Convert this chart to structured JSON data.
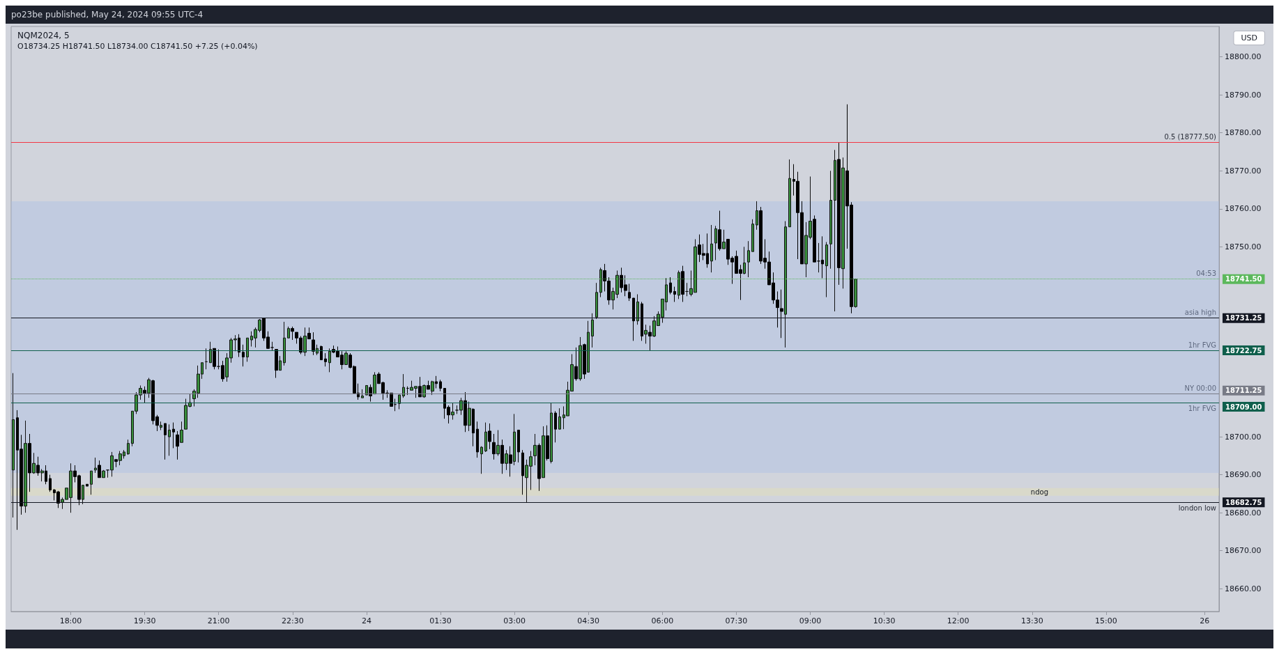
{
  "chart_data": {
    "type": "candlestick",
    "title": "NQM2024, 5",
    "subtitle": "O18734.25 H18741.50 L18734.00 C18741.50 +7.25 (+0.04%)",
    "annotations": [
      "po23be published, May 24, 2024 09:55 UTC-4",
      "USD",
      {
        "text": "0.5 (18777.50)",
        "y": 18777.5
      },
      {
        "text": "04:53",
        "y": 18741.5
      },
      {
        "text": "asia high",
        "y": 18731.25
      },
      {
        "text": "1hr FVG",
        "y": 18722.75
      },
      {
        "text": "NY 00:00",
        "y": 18711.25
      },
      {
        "text": "1hr FVG",
        "y": 18709
      },
      {
        "text": "london low",
        "y": 18682.75
      }
    ],
    "categories": [
      null,
      null,
      null,
      null,
      null,
      null,
      null,
      null,
      null,
      null,
      null,
      null,
      null,
      null,
      "18:00",
      null,
      null,
      null,
      null,
      null,
      null,
      null,
      null,
      null,
      null,
      null,
      null,
      null,
      null,
      null,
      null,
      null,
      "19:30",
      null,
      null,
      null,
      null,
      null,
      null,
      null,
      null,
      null,
      null,
      null,
      null,
      null,
      null,
      null,
      null,
      null,
      "21:00",
      null,
      null,
      null,
      null,
      null,
      null,
      null,
      null,
      null,
      null,
      null,
      null,
      null,
      null,
      null,
      null,
      null,
      "22:30",
      null,
      null,
      null,
      null,
      null,
      null,
      null,
      null,
      null,
      null,
      null,
      null,
      null,
      null,
      null,
      null,
      null,
      "24",
      null,
      null,
      null,
      null,
      null,
      null,
      null,
      null,
      null,
      null,
      null,
      null,
      null,
      null,
      null,
      null,
      null,
      "01:30",
      null,
      null,
      null,
      null,
      null,
      null,
      null,
      null,
      null,
      null,
      null,
      null,
      null,
      null,
      null,
      null,
      null,
      "03:00",
      null,
      null,
      null,
      null,
      null,
      null,
      null,
      null,
      null,
      null,
      null,
      null,
      null,
      null,
      null,
      null,
      null,
      "04:30",
      null,
      null,
      null,
      null,
      null,
      null,
      null,
      null,
      null,
      null,
      null,
      null,
      null,
      null,
      null,
      null,
      null,
      "06:00",
      null,
      null,
      null,
      null,
      null,
      null,
      null,
      null,
      null,
      null,
      null,
      null,
      null,
      null,
      null,
      null,
      null,
      "07:30",
      null,
      null,
      null,
      null,
      null,
      null,
      null,
      null,
      null,
      null,
      null,
      null,
      null,
      null,
      null,
      null,
      null,
      "09:00",
      null,
      null,
      null,
      null,
      null,
      null,
      null,
      null,
      null,
      null,
      null,
      null,
      null,
      null,
      null,
      null,
      null,
      "10:30",
      null,
      null,
      null,
      null,
      null,
      null,
      null,
      null,
      null,
      null,
      null,
      null,
      null,
      null,
      null,
      null,
      null,
      "12:00",
      null,
      null,
      null,
      null,
      null,
      null,
      null,
      null,
      null,
      null,
      null,
      null,
      null,
      null,
      null,
      null,
      null,
      "13:30",
      null,
      null,
      null,
      null,
      null,
      null,
      null,
      null,
      null,
      null,
      null,
      null,
      null,
      null,
      null,
      null,
      null,
      "15:00",
      null,
      null,
      null,
      null,
      null,
      null,
      null,
      null,
      null,
      null,
      null,
      null,
      null,
      null,
      null,
      null,
      null,
      null,
      null,
      null,
      null,
      null,
      null,
      "26",
      null,
      null,
      null
    ],
    "ohlc": [
      [
        18691.25,
        18716.75,
        18678.75,
        18704.5
      ],
      [
        18705,
        18707,
        18675.5,
        18696.5
      ],
      [
        18696.75,
        18700.5,
        18679.5,
        18681.75
      ],
      [
        18681.75,
        18704.25,
        18680,
        18698.25
      ],
      [
        18698.25,
        18700.75,
        18685.5,
        18690.5
      ],
      [
        18690.5,
        18695.75,
        18690.25,
        18693
      ],
      [
        18692.5,
        18694.75,
        18689.75,
        18690.5
      ],
      [
        18690.5,
        18691.5,
        18688.25,
        18691
      ],
      [
        18691,
        18692.5,
        18687.5,
        18688.25
      ],
      [
        18689,
        18690,
        18685.5,
        18686
      ],
      [
        18686,
        18686.25,
        18683.25,
        18685.25
      ],
      [
        18685.5,
        18685.75,
        18681.25,
        18682.5
      ],
      [
        18682.75,
        18684,
        18681,
        18683.5
      ],
      [
        18683.5,
        18686.5,
        18683.5,
        18686.5
      ],
      [
        18684,
        18693,
        18680,
        18691
      ],
      [
        18691,
        18692.5,
        18688,
        18689.5
      ],
      [
        18689.75,
        18690,
        18682,
        18683.5
      ],
      [
        18683.5,
        18687.25,
        18682.25,
        18687.25
      ],
      [
        18687.5,
        18687.5,
        18687,
        18687
      ],
      [
        18687.5,
        18691,
        18684.75,
        18691
      ],
      [
        18691.25,
        18694.5,
        18690.5,
        18691.75
      ],
      [
        18692.5,
        18693.75,
        18689.25,
        18689.25
      ],
      [
        18689.25,
        18691.25,
        18689.25,
        18691
      ],
      [
        18691.25,
        18691.25,
        18689.25,
        18691.25
      ],
      [
        18691.25,
        18696,
        18689.5,
        18695
      ],
      [
        18694,
        18694,
        18692,
        18693.5
      ],
      [
        18693.75,
        18696.25,
        18692.5,
        18695.5
      ],
      [
        18695,
        18696.5,
        18694.25,
        18696
      ],
      [
        18695.5,
        18699.25,
        18695.25,
        18698.25
      ],
      [
        18698.25,
        18706.75,
        18697.5,
        18706.75
      ],
      [
        18706.75,
        18711.75,
        18706,
        18711
      ],
      [
        18711,
        18713.5,
        18709.75,
        18712.75
      ],
      [
        18712.25,
        18713.25,
        18709,
        18711.5
      ],
      [
        18711.5,
        18715.5,
        18710.25,
        18715
      ],
      [
        18714.75,
        18715,
        18703.25,
        18704.25
      ],
      [
        18705.25,
        18705.75,
        18701.5,
        18703
      ],
      [
        18702.5,
        18704,
        18701.75,
        18703
      ],
      [
        18703.5,
        18703.5,
        18694,
        18700.5
      ],
      [
        18700,
        18703.25,
        18695,
        18701.75
      ],
      [
        18702,
        18703.75,
        18697,
        18701.25
      ],
      [
        18700.5,
        18701.5,
        18694,
        18697.5
      ],
      [
        18698.5,
        18704,
        18698.5,
        18701.75
      ],
      [
        18702,
        18710,
        18702,
        18708.25
      ],
      [
        18708,
        18711.25,
        18707.75,
        18709
      ],
      [
        18710,
        18712.5,
        18708,
        18712
      ],
      [
        18711.5,
        18718.75,
        18710.25,
        18716.5
      ],
      [
        18716.5,
        18719.5,
        18715.25,
        18719.5
      ],
      [
        18719.75,
        18723.25,
        18717.75,
        18719.75
      ],
      [
        18719.5,
        18725,
        18719.5,
        18723
      ],
      [
        18723.25,
        18723.25,
        18717.75,
        18718.5
      ],
      [
        18718.5,
        18723,
        18717.75,
        18718.5
      ],
      [
        18718.75,
        18720,
        18714.5,
        18715.25
      ],
      [
        18715.75,
        18722,
        18714.5,
        18720.75
      ],
      [
        18720.75,
        18726,
        18719.5,
        18725.5
      ],
      [
        18725.5,
        18726.75,
        18722.5,
        18725.75
      ],
      [
        18726,
        18727,
        18721,
        18722.25
      ],
      [
        18722.25,
        18724.25,
        18718.5,
        18721
      ],
      [
        18721,
        18726,
        18719.75,
        18726
      ],
      [
        18725.5,
        18727.75,
        18723.75,
        18726.5
      ],
      [
        18726,
        18728.75,
        18723.5,
        18728.25
      ],
      [
        18728,
        18731,
        18727.5,
        18730.75
      ],
      [
        18731.25,
        18731.25,
        18725.25,
        18726
      ],
      [
        18726.25,
        18727.75,
        18723.25,
        18723.25
      ],
      [
        18723.5,
        18725,
        18722.75,
        18723.5
      ],
      [
        18723,
        18723,
        18715.5,
        18717.5
      ],
      [
        18717.5,
        18721.25,
        18717.5,
        18720
      ],
      [
        18719.5,
        18730.25,
        18718.75,
        18726
      ],
      [
        18726,
        18729,
        18726,
        18728.5
      ],
      [
        18728.5,
        18729,
        18725.5,
        18727.75
      ],
      [
        18727.5,
        18727.5,
        18724.5,
        18726
      ],
      [
        18726,
        18726.5,
        18721.75,
        18722.25
      ],
      [
        18722.25,
        18728.75,
        18721.25,
        18726.5
      ],
      [
        18727.25,
        18728.75,
        18725.75,
        18725.75
      ],
      [
        18725.5,
        18727.5,
        18721.5,
        18722.5
      ],
      [
        18722,
        18724.25,
        18721.5,
        18723.25
      ],
      [
        18723.75,
        18724,
        18720.25,
        18720.25
      ],
      [
        18720.5,
        18722,
        18718.5,
        18719.75
      ],
      [
        18719.5,
        18723.25,
        18717,
        18722.5
      ],
      [
        18723,
        18724,
        18722,
        18722.25
      ],
      [
        18722.5,
        18723.75,
        18721,
        18721
      ],
      [
        18721.5,
        18722.5,
        18717.75,
        18719
      ],
      [
        18719,
        18722.5,
        18719,
        18722
      ],
      [
        18721.5,
        18722,
        18718,
        18718.25
      ],
      [
        18718.5,
        18718.75,
        18711.25,
        18711.5
      ],
      [
        18711.5,
        18714,
        18709.75,
        18710.5
      ],
      [
        18710.25,
        18712.5,
        18710.25,
        18710.75
      ],
      [
        18711,
        18713.5,
        18711,
        18713.5
      ],
      [
        18713,
        18713.75,
        18709.25,
        18710.75
      ],
      [
        18711.25,
        18717,
        18711.25,
        18716.25
      ],
      [
        18716.5,
        18717,
        18714,
        18714
      ],
      [
        18714.25,
        18714.5,
        18709.75,
        18711.5
      ],
      [
        18711.5,
        18712.25,
        18710.25,
        18711.5
      ],
      [
        18711.5,
        18711.5,
        18708,
        18708
      ],
      [
        18708.5,
        18710,
        18706.75,
        18708.5
      ],
      [
        18708.75,
        18711,
        18707.25,
        18711
      ],
      [
        18710.75,
        18716.5,
        18710.25,
        18713
      ],
      [
        18712.75,
        18713.25,
        18711,
        18712.75
      ],
      [
        18712.25,
        18714.75,
        18712.25,
        18713
      ],
      [
        18712.75,
        18713.25,
        18710.25,
        18713.25
      ],
      [
        18713.25,
        18715.75,
        18710.5,
        18710.5
      ],
      [
        18710.5,
        18713.75,
        18710.25,
        18713.5
      ],
      [
        18713.5,
        18714.75,
        18712.5,
        18712.5
      ],
      [
        18712,
        18714.75,
        18711,
        18714.5
      ],
      [
        18714.5,
        18716,
        18712.75,
        18714
      ],
      [
        18714.5,
        18715,
        18712,
        18712.75
      ],
      [
        18712.75,
        18712.75,
        18704.75,
        18707.5
      ],
      [
        18707.75,
        18708.25,
        18703.5,
        18705.75
      ],
      [
        18705.75,
        18709,
        18704.5,
        18706.5
      ],
      [
        18707,
        18708.25,
        18706,
        18707
      ],
      [
        18707,
        18710.25,
        18705.75,
        18709.5
      ],
      [
        18709.5,
        18711.75,
        18701.25,
        18703
      ],
      [
        18703,
        18709.25,
        18701.5,
        18707.5
      ],
      [
        18707.25,
        18707.5,
        18697.5,
        18701
      ],
      [
        18702,
        18704,
        18694.5,
        18696
      ],
      [
        18695.5,
        18697.5,
        18690.25,
        18697.25
      ],
      [
        18696.25,
        18703.75,
        18696,
        18701.25
      ],
      [
        18701.5,
        18703.5,
        18696.75,
        18698.75
      ],
      [
        18698.5,
        18700.75,
        18694,
        18695.5
      ],
      [
        18695.5,
        18701.75,
        18695,
        18697.75
      ],
      [
        18697.75,
        18699.25,
        18690.25,
        18693
      ],
      [
        18693,
        18696.5,
        18691.25,
        18695.5
      ],
      [
        18695.25,
        18697.5,
        18689.5,
        18693
      ],
      [
        18693.5,
        18706,
        18692.5,
        18701.25
      ],
      [
        18701.75,
        18701.75,
        18693.25,
        18696
      ],
      [
        18695.75,
        18696.5,
        18684.75,
        18689.75
      ],
      [
        18689.25,
        18694,
        18682.75,
        18692.5
      ],
      [
        18692.25,
        18696.25,
        18686,
        18694.75
      ],
      [
        18695,
        18700.75,
        18692.5,
        18697.75
      ],
      [
        18697.75,
        18698.25,
        18685.75,
        18689
      ],
      [
        18689.25,
        18702.75,
        18689.25,
        18700.25
      ],
      [
        18700.25,
        18703,
        18693.75,
        18694.25
      ],
      [
        18693.5,
        18709,
        18693,
        18706.25
      ],
      [
        18706.25,
        18706.75,
        18698.5,
        18702
      ],
      [
        18702,
        18707.5,
        18702,
        18705.25
      ],
      [
        18705,
        18708,
        18702,
        18705.75
      ],
      [
        18705.5,
        18714.5,
        18705.5,
        18712.25
      ],
      [
        18712,
        18721.75,
        18712,
        18719
      ],
      [
        18718.5,
        18723.5,
        18714.75,
        18715.25
      ],
      [
        18715.25,
        18726.25,
        18714.75,
        18724
      ],
      [
        18724.25,
        18724.5,
        18715.25,
        18716.5
      ],
      [
        18717,
        18730.5,
        18717,
        18727.5
      ],
      [
        18726.5,
        18732.5,
        18723.5,
        18730.75
      ],
      [
        18731.5,
        18740.5,
        18731,
        18738
      ],
      [
        18738,
        18744.5,
        18736.75,
        18744
      ],
      [
        18743.75,
        18745.5,
        18738.25,
        18741
      ],
      [
        18741,
        18742,
        18734.75,
        18736
      ],
      [
        18736,
        18739.25,
        18733.5,
        18738.25
      ],
      [
        18737.5,
        18743.75,
        18736.5,
        18742.5
      ],
      [
        18742.5,
        18744.5,
        18738,
        18739.25
      ],
      [
        18740,
        18742.5,
        18737,
        18738.5
      ],
      [
        18738,
        18740.25,
        18735.75,
        18736.5
      ],
      [
        18736.5,
        18736.5,
        18725.25,
        18730.5
      ],
      [
        18730.5,
        18737.5,
        18729.5,
        18735.5
      ],
      [
        18735,
        18735.5,
        18725.25,
        18726.5
      ],
      [
        18727,
        18729.5,
        18724.5,
        18728
      ],
      [
        18727.5,
        18729.25,
        18722.75,
        18726.5
      ],
      [
        18726.5,
        18731.75,
        18726.25,
        18730.5
      ],
      [
        18729.25,
        18733,
        18729.25,
        18732.25
      ],
      [
        18731.5,
        18736.25,
        18730,
        18736.25
      ],
      [
        18735.5,
        18741.75,
        18733.25,
        18740
      ],
      [
        18740.5,
        18742,
        18737.5,
        18738
      ],
      [
        18738.25,
        18739.5,
        18735.5,
        18737.5
      ],
      [
        18737.25,
        18743.75,
        18736.25,
        18743.25
      ],
      [
        18743.5,
        18745,
        18735.5,
        18737.5
      ],
      [
        18738.25,
        18740.5,
        18737,
        18738.25
      ],
      [
        18737.5,
        18743.75,
        18737,
        18739
      ],
      [
        18738,
        18752,
        18738,
        18750
      ],
      [
        18750.5,
        18753.25,
        18746,
        18748
      ],
      [
        18748.25,
        18750.75,
        18746.5,
        18747.75
      ],
      [
        18748.25,
        18753.5,
        18744.5,
        18745.5
      ],
      [
        18746.25,
        18755.75,
        18743.25,
        18750.75
      ],
      [
        18751,
        18755.5,
        18746.5,
        18754.75
      ],
      [
        18754.5,
        18759.5,
        18749,
        18749.5
      ],
      [
        18749.5,
        18754.5,
        18749.5,
        18751.25
      ],
      [
        18752,
        18752,
        18745.25,
        18746.75
      ],
      [
        18747,
        18747.5,
        18740.25,
        18746
      ],
      [
        18747.5,
        18749,
        18743,
        18743
      ],
      [
        18744,
        18745.25,
        18736,
        18743
      ],
      [
        18743,
        18750,
        18742.75,
        18745.75
      ],
      [
        18746,
        18751.5,
        18742,
        18749
      ],
      [
        18748.75,
        18757.25,
        18748.75,
        18756
      ],
      [
        18755.75,
        18762,
        18754.5,
        18759.5
      ],
      [
        18759.5,
        18760.5,
        18745.5,
        18746.25
      ],
      [
        18747,
        18752,
        18744.25,
        18746
      ],
      [
        18746,
        18748.75,
        18740,
        18740
      ],
      [
        18740.5,
        18743.25,
        18735,
        18736
      ],
      [
        18736,
        18738.25,
        18728.75,
        18734
      ],
      [
        18733.75,
        18738.75,
        18726,
        18733
      ],
      [
        18732.25,
        18756.75,
        18723.5,
        18755.25
      ],
      [
        18755.25,
        18773,
        18755.25,
        18768
      ],
      [
        18767.75,
        18771.75,
        18763.5,
        18767.25
      ],
      [
        18767.25,
        18769.75,
        18746.75,
        18759
      ],
      [
        18759,
        18762,
        18745.5,
        18745.5
      ],
      [
        18745.5,
        18756.5,
        18742,
        18753
      ],
      [
        18752.5,
        18768.5,
        18752,
        18756.75
      ],
      [
        18757.25,
        18758.25,
        18746,
        18746
      ],
      [
        18746.25,
        18751,
        18743.25,
        18746.25
      ],
      [
        18746.5,
        18752.75,
        18741.75,
        18745.5
      ],
      [
        18745,
        18751.25,
        18736.75,
        18750.5
      ],
      [
        18750.75,
        18770,
        18744.25,
        18762.25
      ],
      [
        18762.25,
        18775.5,
        18733,
        18772.75
      ],
      [
        18773,
        18777.5,
        18740,
        18744.5
      ],
      [
        18744.25,
        18773.5,
        18739,
        18770.75
      ],
      [
        18770,
        18787.5,
        18749.5,
        18760.75
      ],
      [
        18761,
        18761.75,
        18732.5,
        18734.25
      ],
      [
        18734.25,
        18741.5,
        18734,
        18741.5
      ],
      null,
      null,
      null,
      null,
      null,
      null,
      null,
      null,
      null,
      null,
      null,
      null,
      null,
      null,
      null,
      null,
      null,
      null,
      null,
      null,
      null,
      null,
      null,
      null,
      null,
      null,
      null,
      null,
      null,
      null,
      null,
      null,
      null,
      null,
      null,
      null,
      null,
      null,
      null,
      null,
      null,
      null,
      null,
      null,
      null,
      null,
      null,
      null,
      null,
      null,
      null,
      null,
      null,
      null,
      null,
      null,
      null,
      null,
      null,
      null,
      null,
      null,
      null,
      null,
      null,
      null,
      null,
      null,
      null,
      null,
      null,
      null,
      null,
      null,
      null,
      null,
      null,
      null,
      null,
      null,
      null,
      null,
      null,
      null,
      null,
      null,
      null,
      null
    ],
    "ylim": [
      18654,
      18808
    ],
    "yticks": [
      {
        "value": 18660,
        "label": "18660.00"
      },
      {
        "value": 18670,
        "label": "18670.00"
      },
      {
        "value": 18680,
        "label": "18680.00"
      },
      {
        "value": 18690,
        "label": "18690.00"
      },
      {
        "value": 18700,
        "label": "18700.00"
      },
      {
        "value": 18750,
        "label": "18750.00"
      },
      {
        "value": 18760,
        "label": "18760.00"
      },
      {
        "value": 18770,
        "label": "18770.00"
      },
      {
        "value": 18780,
        "label": "18780.00"
      },
      {
        "value": 18790,
        "label": "18790.00"
      },
      {
        "value": 18800,
        "label": "18800.00"
      }
    ],
    "ref_lines": [
      {
        "axis": "y",
        "value": 18777.5,
        "color": "#f23645",
        "line_style": "solid"
      },
      {
        "axis": "y",
        "value": 18741.5,
        "label": "18741.50",
        "color": "#5cb85c",
        "line_style": "dotted"
      },
      {
        "axis": "y",
        "value": 18731.25,
        "label": "18731.25",
        "color": "#131722",
        "line_style": "solid"
      },
      {
        "axis": "y",
        "value": 18722.75,
        "label": "18722.75",
        "color": "#0f5f4c",
        "line_style": "solid"
      },
      {
        "axis": "y",
        "value": 18711.25,
        "label": "18711.25",
        "color": "#787b86",
        "line_style": "solid"
      },
      {
        "axis": "y",
        "value": 18709,
        "label": "18709.00",
        "color": "#0f5f4c",
        "line_style": "solid"
      },
      {
        "axis": "y",
        "value": 18682.75,
        "label": "18682.75",
        "color": "#131722",
        "line_style": "solid"
      }
    ],
    "bands": [
      {
        "axis": "y",
        "from": 18684.5,
        "to": 18686.5,
        "label": "ndog",
        "color": "#e6e0b0"
      },
      {
        "axis": "y",
        "from": 18690.5,
        "to": 18762,
        "color": "#a9bde6"
      }
    ]
  }
}
